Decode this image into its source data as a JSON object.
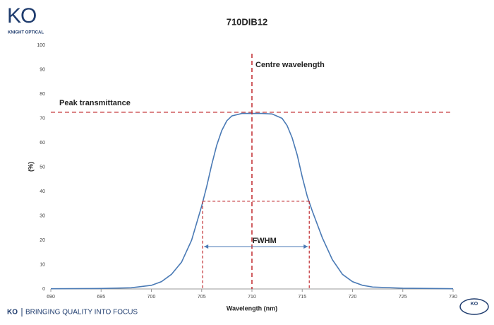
{
  "brand": {
    "logo": "KO",
    "name": "KNIGHT OPTICAL",
    "footer_logo": "KO",
    "tagline": "BRINGING QUALITY INTO FOCUS",
    "badge": "KO"
  },
  "chart_data": {
    "type": "line",
    "title": "710DIB12",
    "x_label": "Wavelength (nm)",
    "y_label": "(%)",
    "series": [
      {
        "name": "710DIB12",
        "color": "#4a7ab5",
        "x": [
          690,
          695,
          698,
          700,
          701,
          702,
          703,
          704,
          705,
          705.5,
          706,
          706.5,
          707,
          707.5,
          708,
          709,
          710,
          711,
          712,
          713,
          713.5,
          714,
          714.5,
          715,
          715.5,
          716,
          717,
          718,
          719,
          720,
          721,
          722,
          725,
          730
        ],
        "values": [
          0.1,
          0.2,
          0.5,
          1.5,
          3,
          6,
          11,
          20,
          34,
          42,
          51,
          59,
          65,
          69,
          71,
          72,
          72,
          72,
          71.8,
          70,
          67,
          62,
          55,
          46,
          38,
          32,
          21,
          12,
          6,
          3,
          1.5,
          0.8,
          0.3,
          0.1
        ]
      }
    ],
    "xlim": [
      690,
      730
    ],
    "ylim": [
      0,
      100
    ],
    "xticks": [
      690,
      695,
      700,
      705,
      710,
      715,
      720,
      725,
      730
    ],
    "yticks": [
      0,
      10,
      20,
      30,
      40,
      50,
      60,
      70,
      80,
      90,
      100
    ],
    "annotations": {
      "centre_label": "Centre wavelength",
      "centre_wavelength": 710,
      "peak_label": "Peak transmittance",
      "peak_transmittance": 72.5,
      "fwhm_label": "FWHM",
      "fwhm_level": 36,
      "fwhm_range": [
        705.1,
        715.7
      ]
    },
    "annotation_color": "#c0282d"
  }
}
